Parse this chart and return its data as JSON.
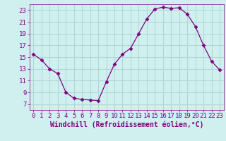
{
  "x": [
    0,
    1,
    2,
    3,
    4,
    5,
    6,
    7,
    8,
    9,
    10,
    11,
    12,
    13,
    14,
    15,
    16,
    17,
    18,
    19,
    20,
    21,
    22,
    23
  ],
  "y": [
    15.5,
    14.5,
    13.0,
    12.2,
    9.0,
    8.0,
    7.8,
    7.7,
    7.6,
    10.8,
    13.8,
    15.5,
    16.5,
    19.0,
    21.5,
    23.2,
    23.5,
    23.3,
    23.4,
    22.3,
    20.2,
    17.0,
    14.3,
    12.8
  ],
  "line_color": "#800080",
  "marker": "D",
  "marker_size": 2.5,
  "bg_color": "#d0f0f0",
  "grid_color": "#b0d8d8",
  "xlabel": "Windchill (Refroidissement éolien,°C)",
  "xlabel_color": "#800080",
  "tick_color": "#800080",
  "ylim": [
    6,
    24
  ],
  "xlim": [
    -0.5,
    23.5
  ],
  "yticks": [
    7,
    9,
    11,
    13,
    15,
    17,
    19,
    21,
    23
  ],
  "xticks": [
    0,
    1,
    2,
    3,
    4,
    5,
    6,
    7,
    8,
    9,
    10,
    11,
    12,
    13,
    14,
    15,
    16,
    17,
    18,
    19,
    20,
    21,
    22,
    23
  ],
  "font_size": 6.5,
  "label_font_size": 7
}
